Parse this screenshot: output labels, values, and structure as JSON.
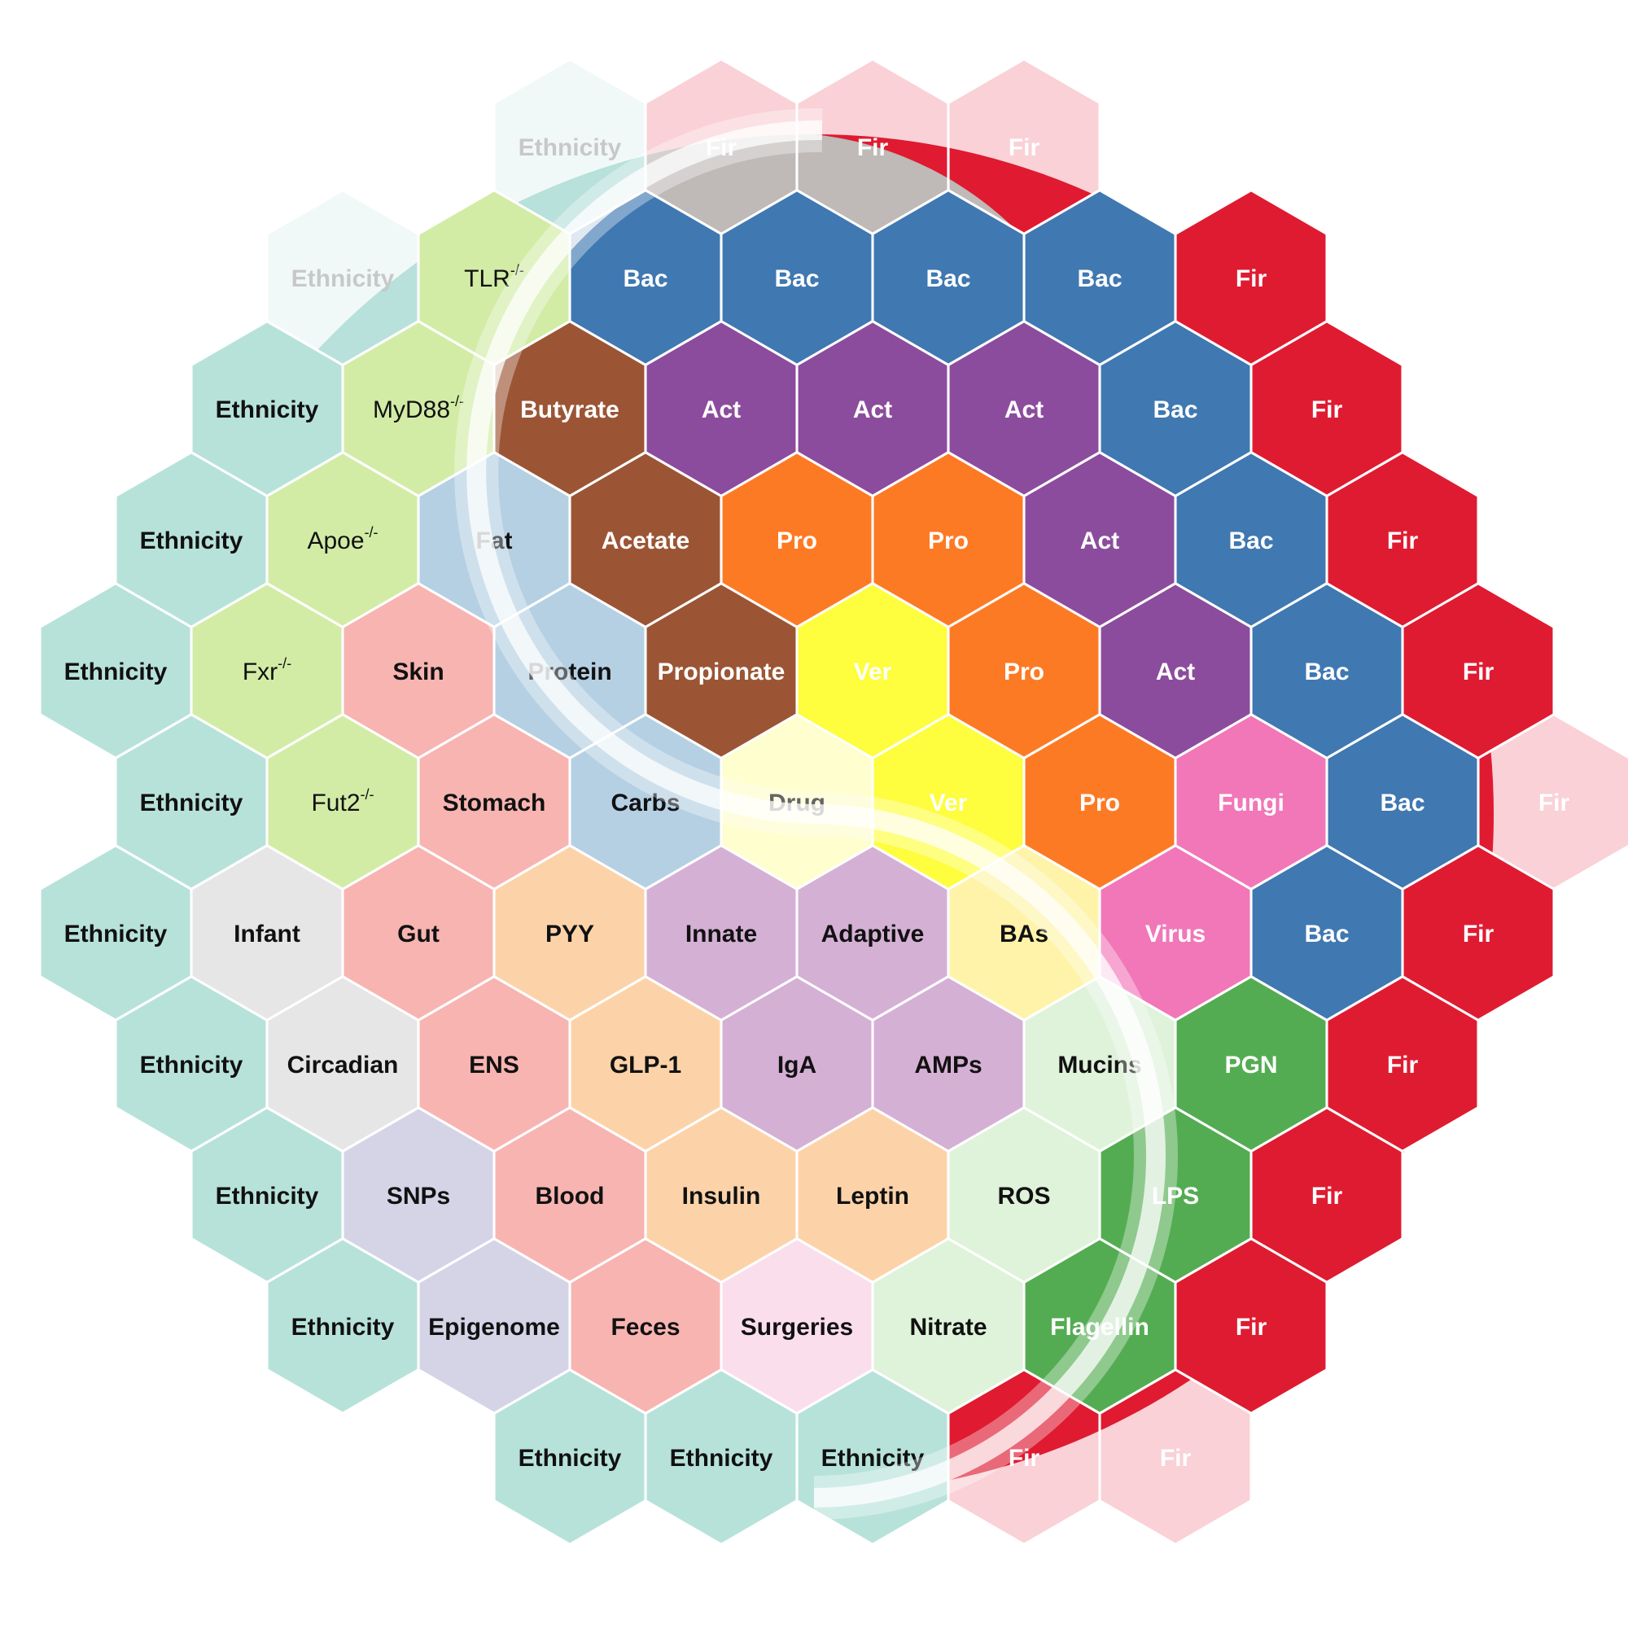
{
  "colors": {
    "Ethnicity": "#b7e2da",
    "Gene": "#d2eca6",
    "Bac": "#4078b1",
    "Fir": "#df1b31",
    "Act": "#8c4c9d",
    "Pro": "#fd7a25",
    "Ver": "#fefd3e",
    "Fungi": "#f177b8",
    "SCFA": "#9b5535",
    "Diet": "#b5d0e3",
    "Drug": "#fefece",
    "Site": "#f8b4b1",
    "Hormone": "#fcd3a9",
    "Immune": "#d5b0d5",
    "BAs": "#fef3a8",
    "Host": "#dff2da",
    "Microbe": "#54ac52",
    "Life": "#e6e6e6",
    "Genome": "#d5d4e7",
    "Surgery": "#fbdeec"
  },
  "hexagons": [
    {
      "text": "Ethnicity",
      "sup": "",
      "group": "Ethnicity",
      "faded": true,
      "dark": false,
      "bold": true
    },
    {
      "text": "Fir",
      "sup": "",
      "group": "Fir",
      "faded": true,
      "dark": false,
      "bold": true
    },
    {
      "text": "Fir",
      "sup": "",
      "group": "Fir",
      "faded": true,
      "dark": false,
      "bold": true
    },
    {
      "text": "Fir",
      "sup": "",
      "group": "Fir",
      "faded": true,
      "dark": false,
      "bold": true
    },
    {
      "text": "Ethnicity",
      "sup": "",
      "group": "Ethnicity",
      "faded": true,
      "dark": false,
      "bold": true
    },
    {
      "text": "TLR",
      "sup": "-/-",
      "group": "Gene",
      "faded": false,
      "dark": true,
      "bold": false
    },
    {
      "text": "Bac",
      "sup": "",
      "group": "Bac",
      "faded": false,
      "dark": false,
      "bold": true
    },
    {
      "text": "Bac",
      "sup": "",
      "group": "Bac",
      "faded": false,
      "dark": false,
      "bold": true
    },
    {
      "text": "Bac",
      "sup": "",
      "group": "Bac",
      "faded": false,
      "dark": false,
      "bold": true
    },
    {
      "text": "Bac",
      "sup": "",
      "group": "Bac",
      "faded": false,
      "dark": false,
      "bold": true
    },
    {
      "text": "Fir",
      "sup": "",
      "group": "Fir",
      "faded": false,
      "dark": false,
      "bold": true
    },
    {
      "text": "Ethnicity",
      "sup": "",
      "group": "Ethnicity",
      "faded": false,
      "dark": true,
      "bold": true
    },
    {
      "text": "MyD88",
      "sup": "-/-",
      "group": "Gene",
      "faded": false,
      "dark": true,
      "bold": false
    },
    {
      "text": "Butyrate",
      "sup": "",
      "group": "SCFA",
      "faded": false,
      "dark": false,
      "bold": true
    },
    {
      "text": "Act",
      "sup": "",
      "group": "Act",
      "faded": false,
      "dark": false,
      "bold": true
    },
    {
      "text": "Act",
      "sup": "",
      "group": "Act",
      "faded": false,
      "dark": false,
      "bold": true
    },
    {
      "text": "Act",
      "sup": "",
      "group": "Act",
      "faded": false,
      "dark": false,
      "bold": true
    },
    {
      "text": "Bac",
      "sup": "",
      "group": "Bac",
      "faded": false,
      "dark": false,
      "bold": true
    },
    {
      "text": "Fir",
      "sup": "",
      "group": "Fir",
      "faded": false,
      "dark": false,
      "bold": true
    },
    {
      "text": "Ethnicity",
      "sup": "",
      "group": "Ethnicity",
      "faded": false,
      "dark": true,
      "bold": true
    },
    {
      "text": "Apoe",
      "sup": "-/-",
      "group": "Gene",
      "faded": false,
      "dark": true,
      "bold": false
    },
    {
      "text": "Fat",
      "sup": "",
      "group": "Diet",
      "faded": false,
      "dark": true,
      "bold": true
    },
    {
      "text": "Acetate",
      "sup": "",
      "group": "SCFA",
      "faded": false,
      "dark": false,
      "bold": true
    },
    {
      "text": "Pro",
      "sup": "",
      "group": "Pro",
      "faded": false,
      "dark": false,
      "bold": true
    },
    {
      "text": "Pro",
      "sup": "",
      "group": "Pro",
      "faded": false,
      "dark": false,
      "bold": true
    },
    {
      "text": "Act",
      "sup": "",
      "group": "Act",
      "faded": false,
      "dark": false,
      "bold": true
    },
    {
      "text": "Bac",
      "sup": "",
      "group": "Bac",
      "faded": false,
      "dark": false,
      "bold": true
    },
    {
      "text": "Fir",
      "sup": "",
      "group": "Fir",
      "faded": false,
      "dark": false,
      "bold": true
    },
    {
      "text": "Ethnicity",
      "sup": "",
      "group": "Ethnicity",
      "faded": false,
      "dark": true,
      "bold": true
    },
    {
      "text": "Fxr",
      "sup": "-/-",
      "group": "Gene",
      "faded": false,
      "dark": true,
      "bold": false
    },
    {
      "text": "Skin",
      "sup": "",
      "group": "Site",
      "faded": false,
      "dark": true,
      "bold": true
    },
    {
      "text": "Protein",
      "sup": "",
      "group": "Diet",
      "faded": false,
      "dark": true,
      "bold": true
    },
    {
      "text": "Propionate",
      "sup": "",
      "group": "SCFA",
      "faded": false,
      "dark": false,
      "bold": true
    },
    {
      "text": "Ver",
      "sup": "",
      "group": "Ver",
      "faded": false,
      "dark": false,
      "bold": true
    },
    {
      "text": "Pro",
      "sup": "",
      "group": "Pro",
      "faded": false,
      "dark": false,
      "bold": true
    },
    {
      "text": "Act",
      "sup": "",
      "group": "Act",
      "faded": false,
      "dark": false,
      "bold": true
    },
    {
      "text": "Bac",
      "sup": "",
      "group": "Bac",
      "faded": false,
      "dark": false,
      "bold": true
    },
    {
      "text": "Fir",
      "sup": "",
      "group": "Fir",
      "faded": false,
      "dark": false,
      "bold": true
    },
    {
      "text": "Ethnicity",
      "sup": "",
      "group": "Ethnicity",
      "faded": false,
      "dark": true,
      "bold": true
    },
    {
      "text": "Fut2",
      "sup": "-/-",
      "group": "Gene",
      "faded": false,
      "dark": true,
      "bold": false
    },
    {
      "text": "Stomach",
      "sup": "",
      "group": "Site",
      "faded": false,
      "dark": true,
      "bold": true
    },
    {
      "text": "Carbs",
      "sup": "",
      "group": "Diet",
      "faded": false,
      "dark": true,
      "bold": true
    },
    {
      "text": "Drug",
      "sup": "",
      "group": "Drug",
      "faded": false,
      "dark": true,
      "bold": true
    },
    {
      "text": "Ver",
      "sup": "",
      "group": "Ver",
      "faded": false,
      "dark": false,
      "bold": true
    },
    {
      "text": "Pro",
      "sup": "",
      "group": "Pro",
      "faded": false,
      "dark": false,
      "bold": true
    },
    {
      "text": "Fungi",
      "sup": "",
      "group": "Fungi",
      "faded": false,
      "dark": false,
      "bold": true
    },
    {
      "text": "Bac",
      "sup": "",
      "group": "Bac",
      "faded": false,
      "dark": false,
      "bold": true
    },
    {
      "text": "Fir",
      "sup": "",
      "group": "Fir",
      "faded": true,
      "dark": false,
      "bold": true
    },
    {
      "text": "Ethnicity",
      "sup": "",
      "group": "Ethnicity",
      "faded": false,
      "dark": true,
      "bold": true
    },
    {
      "text": "Infant",
      "sup": "",
      "group": "Life",
      "faded": false,
      "dark": true,
      "bold": true
    },
    {
      "text": "Gut",
      "sup": "",
      "group": "Site",
      "faded": false,
      "dark": true,
      "bold": true
    },
    {
      "text": "PYY",
      "sup": "",
      "group": "Hormone",
      "faded": false,
      "dark": true,
      "bold": true
    },
    {
      "text": "Innate",
      "sup": "",
      "group": "Immune",
      "faded": false,
      "dark": true,
      "bold": true
    },
    {
      "text": "Adaptive",
      "sup": "",
      "group": "Immune",
      "faded": false,
      "dark": true,
      "bold": true
    },
    {
      "text": "BAs",
      "sup": "",
      "group": "BAs",
      "faded": false,
      "dark": true,
      "bold": true
    },
    {
      "text": "Virus",
      "sup": "",
      "group": "Fungi",
      "faded": false,
      "dark": false,
      "bold": true
    },
    {
      "text": "Bac",
      "sup": "",
      "group": "Bac",
      "faded": false,
      "dark": false,
      "bold": true
    },
    {
      "text": "Fir",
      "sup": "",
      "group": "Fir",
      "faded": false,
      "dark": false,
      "bold": true
    },
    {
      "text": "Ethnicity",
      "sup": "",
      "group": "Ethnicity",
      "faded": false,
      "dark": true,
      "bold": true
    },
    {
      "text": "Circadian",
      "sup": "",
      "group": "Life",
      "faded": false,
      "dark": true,
      "bold": true
    },
    {
      "text": "ENS",
      "sup": "",
      "group": "Site",
      "faded": false,
      "dark": true,
      "bold": true
    },
    {
      "text": "GLP-1",
      "sup": "",
      "group": "Hormone",
      "faded": false,
      "dark": true,
      "bold": true
    },
    {
      "text": "IgA",
      "sup": "",
      "group": "Immune",
      "faded": false,
      "dark": true,
      "bold": true
    },
    {
      "text": "AMPs",
      "sup": "",
      "group": "Immune",
      "faded": false,
      "dark": true,
      "bold": true
    },
    {
      "text": "Mucins",
      "sup": "",
      "group": "Host",
      "faded": false,
      "dark": true,
      "bold": true
    },
    {
      "text": "PGN",
      "sup": "",
      "group": "Microbe",
      "faded": false,
      "dark": false,
      "bold": true
    },
    {
      "text": "Fir",
      "sup": "",
      "group": "Fir",
      "faded": false,
      "dark": false,
      "bold": true
    },
    {
      "text": "Ethnicity",
      "sup": "",
      "group": "Ethnicity",
      "faded": false,
      "dark": true,
      "bold": true
    },
    {
      "text": "SNPs",
      "sup": "",
      "group": "Genome",
      "faded": false,
      "dark": true,
      "bold": true
    },
    {
      "text": "Blood",
      "sup": "",
      "group": "Site",
      "faded": false,
      "dark": true,
      "bold": true
    },
    {
      "text": "Insulin",
      "sup": "",
      "group": "Hormone",
      "faded": false,
      "dark": true,
      "bold": true
    },
    {
      "text": "Leptin",
      "sup": "",
      "group": "Hormone",
      "faded": false,
      "dark": true,
      "bold": true
    },
    {
      "text": "ROS",
      "sup": "",
      "group": "Host",
      "faded": false,
      "dark": true,
      "bold": true
    },
    {
      "text": "LPS",
      "sup": "",
      "group": "Microbe",
      "faded": false,
      "dark": false,
      "bold": true
    },
    {
      "text": "Fir",
      "sup": "",
      "group": "Fir",
      "faded": false,
      "dark": false,
      "bold": true
    },
    {
      "text": "Ethnicity",
      "sup": "",
      "group": "Ethnicity",
      "faded": false,
      "dark": true,
      "bold": true
    },
    {
      "text": "Epigenome",
      "sup": "",
      "group": "Genome",
      "faded": false,
      "dark": true,
      "bold": true
    },
    {
      "text": "Feces",
      "sup": "",
      "group": "Site",
      "faded": false,
      "dark": true,
      "bold": true
    },
    {
      "text": "Surgeries",
      "sup": "",
      "group": "Surgery",
      "faded": false,
      "dark": true,
      "bold": true
    },
    {
      "text": "Nitrate",
      "sup": "",
      "group": "Host",
      "faded": false,
      "dark": true,
      "bold": true
    },
    {
      "text": "Flagellin",
      "sup": "",
      "group": "Microbe",
      "faded": false,
      "dark": false,
      "bold": true
    },
    {
      "text": "Fir",
      "sup": "",
      "group": "Fir",
      "faded": false,
      "dark": false,
      "bold": true
    },
    {
      "text": "Ethnicity",
      "sup": "",
      "group": "Ethnicity",
      "faded": false,
      "dark": true,
      "bold": true
    },
    {
      "text": "Ethnicity",
      "sup": "",
      "group": "Ethnicity",
      "faded": false,
      "dark": true,
      "bold": true
    },
    {
      "text": "Ethnicity",
      "sup": "",
      "group": "Ethnicity",
      "faded": false,
      "dark": true,
      "bold": true
    },
    {
      "text": "Fir",
      "sup": "",
      "group": "Fir",
      "faded": true,
      "dark": false,
      "bold": true
    },
    {
      "text": "Fir",
      "sup": "",
      "group": "Fir",
      "faded": true,
      "dark": false,
      "bold": true
    }
  ]
}
